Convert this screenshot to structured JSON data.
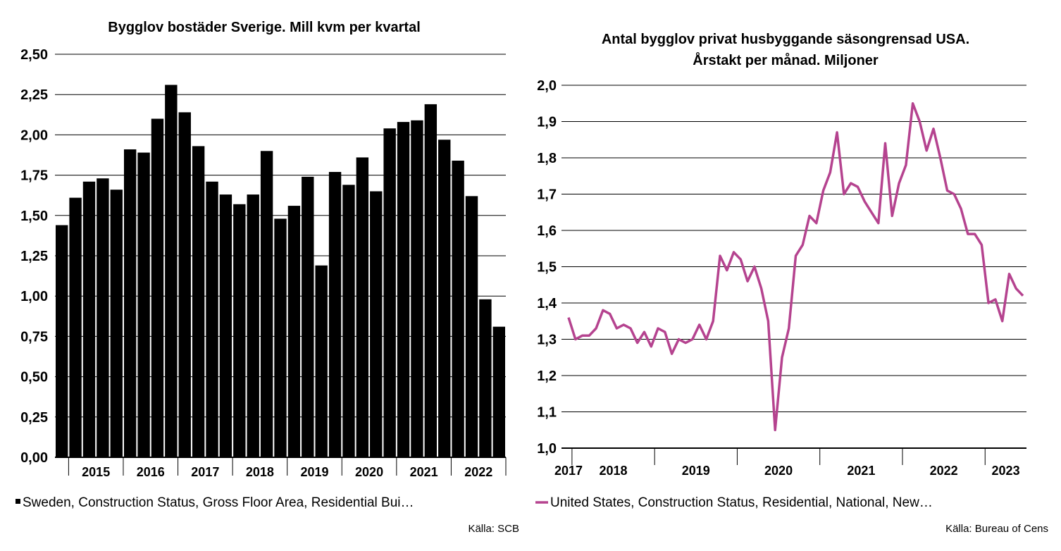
{
  "chart_data": [
    {
      "type": "bar",
      "title": "Bygglov bostäder Sverige. Mill kvm per kvartal",
      "ylim": [
        0,
        2.5
      ],
      "yticks": [
        "0,00",
        "0,25",
        "0,50",
        "0,75",
        "1,00",
        "1,25",
        "1,50",
        "1,75",
        "2,00",
        "2,25",
        "2,50"
      ],
      "year_labels": [
        "2015",
        "2016",
        "2017",
        "2018",
        "2019",
        "2020",
        "2021",
        "2022"
      ],
      "categories": [
        "2014Q4",
        "2015Q1",
        "2015Q2",
        "2015Q3",
        "2015Q4",
        "2016Q1",
        "2016Q2",
        "2016Q3",
        "2016Q4",
        "2017Q1",
        "2017Q2",
        "2017Q3",
        "2017Q4",
        "2018Q1",
        "2018Q2",
        "2018Q3",
        "2018Q4",
        "2019Q1",
        "2019Q2",
        "2019Q3",
        "2019Q4",
        "2020Q1",
        "2020Q2",
        "2020Q3",
        "2020Q4",
        "2021Q1",
        "2021Q2",
        "2021Q3",
        "2021Q4",
        "2022Q1",
        "2022Q2",
        "2022Q3",
        "2022Q4"
      ],
      "series": [
        {
          "values": [
            1.44,
            1.61,
            1.71,
            1.73,
            1.66,
            1.91,
            1.89,
            2.1,
            2.31,
            2.14,
            1.93,
            1.71,
            1.63,
            1.57,
            1.63,
            1.9,
            1.48,
            1.56,
            1.74,
            1.19,
            1.77,
            1.69,
            1.86,
            1.65,
            2.04,
            2.08,
            2.09,
            2.19,
            1.97,
            1.84,
            1.62,
            0.98,
            0.81
          ],
          "color": "#000000"
        }
      ],
      "grid": true,
      "legend": {
        "label": "Sweden, Construction Status, Gross Floor Area, Residential Bui…",
        "placement": "bottom"
      },
      "source": "Källa: SCB"
    },
    {
      "type": "line",
      "title": [
        "Antal bygglov privat husbyggande säsongrensad USA.",
        "Årstakt per månad. Miljoner"
      ],
      "ylim": [
        1.0,
        2.0
      ],
      "yticks": [
        "1,0",
        "1,1",
        "1,2",
        "1,3",
        "1,4",
        "1,5",
        "1,6",
        "1,7",
        "1,8",
        "1,9",
        "2,0"
      ],
      "year_labels": [
        "2017",
        "2018",
        "2019",
        "2020",
        "2021",
        "2022",
        "2023"
      ],
      "x_start": "2017-12",
      "x_end": "2023-05",
      "series": [
        {
          "color": "#b5438f",
          "values": [
            1.36,
            1.3,
            1.31,
            1.31,
            1.33,
            1.38,
            1.37,
            1.33,
            1.34,
            1.33,
            1.29,
            1.32,
            1.28,
            1.33,
            1.32,
            1.26,
            1.3,
            1.29,
            1.3,
            1.34,
            1.3,
            1.35,
            1.53,
            1.49,
            1.54,
            1.52,
            1.46,
            1.5,
            1.44,
            1.35,
            1.05,
            1.25,
            1.33,
            1.53,
            1.56,
            1.64,
            1.62,
            1.71,
            1.76,
            1.87,
            1.7,
            1.73,
            1.72,
            1.68,
            1.65,
            1.62,
            1.84,
            1.64,
            1.73,
            1.78,
            1.95,
            1.9,
            1.82,
            1.88,
            1.8,
            1.71,
            1.7,
            1.66,
            1.59,
            1.59,
            1.56,
            1.4,
            1.41,
            1.35,
            1.48,
            1.44,
            1.42
          ]
        }
      ],
      "grid": true,
      "legend": {
        "label": "United States, Construction Status, Residential, National, New…",
        "placement": "bottom"
      },
      "source": "Källa: Bureau of Cens"
    }
  ]
}
